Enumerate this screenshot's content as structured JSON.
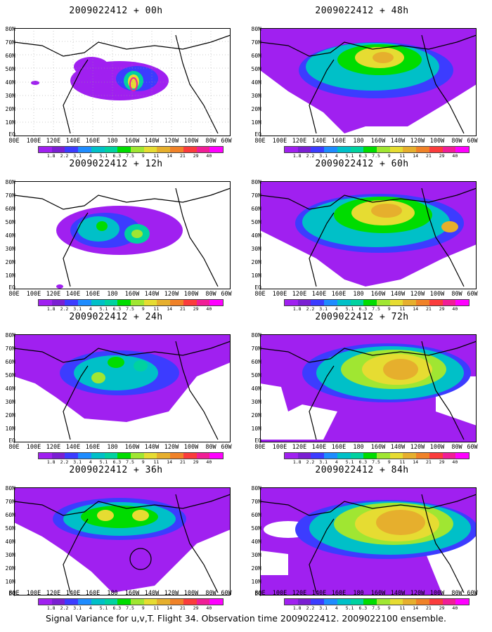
{
  "panels": [
    {
      "title": "2009022412 + 00h"
    },
    {
      "title": "2009022412 + 48h"
    },
    {
      "title": "2009022412 + 12h"
    },
    {
      "title": "2009022412 + 60h"
    },
    {
      "title": "2009022412 + 24h"
    },
    {
      "title": "2009022412 + 72h"
    },
    {
      "title": "2009022412 + 36h"
    },
    {
      "title": "2009022412 + 84h"
    }
  ],
  "lat_labels": [
    "80N",
    "70N",
    "60N",
    "50N",
    "40N",
    "30N",
    "20N",
    "10N",
    "EQ"
  ],
  "lon_labels": [
    "80E",
    "100E",
    "120E",
    "140E",
    "160E",
    "180",
    "160W",
    "140W",
    "120W",
    "100W",
    "80W",
    "60W"
  ],
  "colorbar": {
    "labels": [
      "1.8",
      "2.2",
      "3.1",
      "4",
      "5.1",
      "6.3",
      "7.5",
      "9",
      "11",
      "14",
      "21",
      "29",
      "40"
    ],
    "colors": [
      "#a020f0",
      "#7a1fd2",
      "#3c3cff",
      "#1e8cff",
      "#00c0c8",
      "#00d2a0",
      "#00dc00",
      "#a0e632",
      "#e6dc32",
      "#e6af2d",
      "#f08228",
      "#fa3c3c",
      "#f01e96",
      "#ff00ff"
    ]
  },
  "caption": "Signal Variance for u,v,T. Flight 34. Observation time 2009022412. 2009022100 ensemble."
}
